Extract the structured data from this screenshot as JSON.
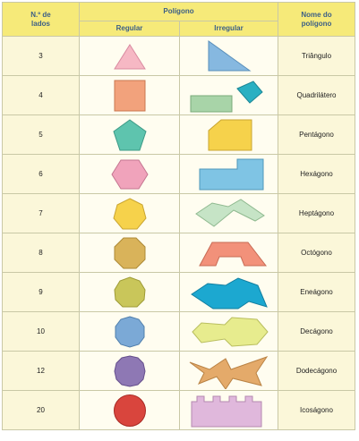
{
  "header": {
    "num_lados_line1": "N.º de",
    "num_lados_line2": "lados",
    "poligono": "Polígono",
    "regular": "Regular",
    "irregular": "Irregular",
    "nome_line1": "Nome do",
    "nome_line2": "polígono"
  },
  "rows": [
    {
      "n": "3",
      "name": "Triângulo",
      "color": "#f6b8c4"
    },
    {
      "n": "4",
      "name": "Quadrilátero",
      "color": "#f2a27c"
    },
    {
      "n": "5",
      "name": "Pentágono",
      "color": "#5ec4ae"
    },
    {
      "n": "6",
      "name": "Hexágono",
      "color": "#f0a3bb"
    },
    {
      "n": "7",
      "name": "Heptágono",
      "color": "#f6d24b"
    },
    {
      "n": "8",
      "name": "Octógono",
      "color": "#d9b35a"
    },
    {
      "n": "9",
      "name": "Eneágono",
      "color": "#c9c65a"
    },
    {
      "n": "10",
      "name": "Decágono",
      "color": "#7ba9d6"
    },
    {
      "n": "12",
      "name": "Dodecágono",
      "color": "#8e78b4"
    },
    {
      "n": "20",
      "name": "Icoságono",
      "color": "#d9453d"
    }
  ],
  "irregular_colors": [
    "#86b8e0",
    "#a8d4a8",
    "#2ab0c2",
    "#f6d24b",
    "#7fc4e4",
    "#c6e4c6",
    "#f2917a",
    "#1ca8d0",
    "#e7ec8e",
    "#e4aa6a",
    "#e0b8dc"
  ]
}
